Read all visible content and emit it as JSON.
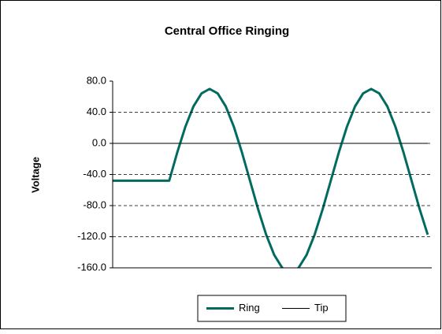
{
  "chart_data": {
    "type": "line",
    "title": "Central Office Ringing",
    "y_label": "Voltage",
    "x": [
      0,
      1,
      2,
      3,
      4,
      5,
      6,
      7,
      8,
      9,
      10,
      11,
      12,
      13,
      14,
      15,
      16,
      17,
      18,
      19,
      20,
      21,
      22,
      23,
      24,
      25,
      26,
      27,
      28,
      29,
      30,
      31,
      32,
      33,
      34,
      35,
      36,
      37,
      38,
      39
    ],
    "xlim": [
      0,
      39.5
    ],
    "series": [
      {
        "name": "Ring",
        "color": "#006b5e",
        "values": [
          -48,
          -48,
          -48,
          -48,
          -48,
          -48,
          -48,
          -48,
          -11.5,
          21.4,
          47.5,
          64.2,
          70,
          64.2,
          47.5,
          21.4,
          -11.5,
          -48,
          -84.5,
          -117.4,
          -143.5,
          -160.2,
          -166,
          -160.2,
          -143.5,
          -117.4,
          -84.5,
          -48,
          -11.5,
          21.4,
          47.5,
          64.2,
          70,
          64.2,
          47.5,
          21.4,
          -11.5,
          -48,
          -84.5,
          -117.4
        ]
      },
      {
        "name": "Tip",
        "color": "#000000",
        "values": [
          0,
          0,
          0,
          0,
          0,
          0,
          0,
          0,
          0,
          0,
          0,
          0,
          0,
          0,
          0,
          0,
          0,
          0,
          0,
          0,
          0,
          0,
          0,
          0,
          0,
          0,
          0,
          0,
          0,
          0,
          0,
          0,
          0,
          0,
          0,
          0,
          0,
          0,
          0,
          0
        ]
      }
    ],
    "ylim": [
      -160,
      80
    ],
    "yticks": [
      {
        "value": 80,
        "label": "80.0"
      },
      {
        "value": 40,
        "label": "40.0"
      },
      {
        "value": 0,
        "label": "0.0"
      },
      {
        "value": -40,
        "label": "-40.0"
      },
      {
        "value": -80,
        "label": "-80.0"
      },
      {
        "value": -120,
        "label": "-120.0"
      },
      {
        "value": -160,
        "label": "-160.0"
      }
    ],
    "grid": true,
    "legend": "bottom"
  }
}
